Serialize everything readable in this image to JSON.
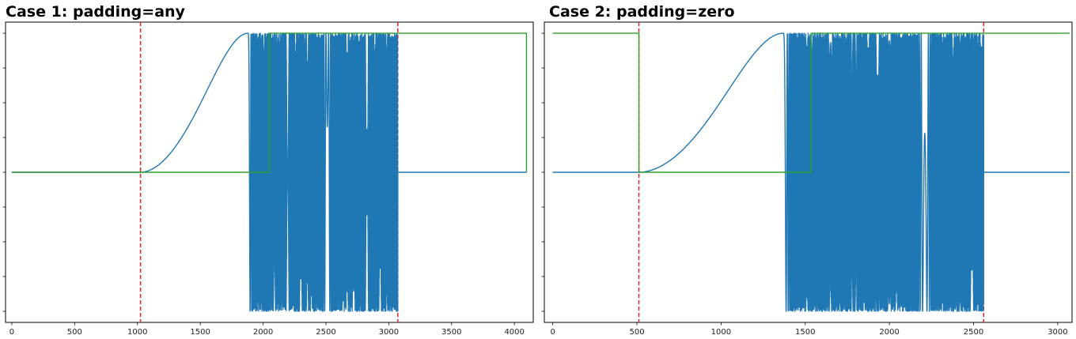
{
  "chart_data": [
    {
      "type": "line",
      "title": "Case 1: padding=any",
      "xlabel": "",
      "ylabel": "",
      "xlim": [
        -50,
        4150
      ],
      "ylim": [
        -1.08,
        1.08
      ],
      "x_ticks": [
        0,
        500,
        1000,
        1500,
        2000,
        2500,
        3000,
        3500,
        4000
      ],
      "y_tick_count": 9,
      "grid": false,
      "colors": {
        "signal": "#1f77b4",
        "window": "#2ca02c",
        "marker": "#d62728"
      },
      "series": [
        {
          "kind": "chirp-signal",
          "color": "#1f77b4",
          "x_start": 0,
          "x_end": 4096,
          "signal_start": 1024,
          "peak_x": 1880,
          "trough_x": 2195,
          "signal_end": 3072,
          "baseline": 0,
          "amplitude": 1
        },
        {
          "kind": "window",
          "color": "#2ca02c",
          "points": [
            [
              0,
              0
            ],
            [
              2048,
              0
            ],
            [
              2048,
              1
            ],
            [
              4096,
              1
            ],
            [
              4096,
              0
            ]
          ]
        }
      ],
      "vlines": [
        {
          "x": 1024,
          "color": "#d62728",
          "style": "dashed"
        },
        {
          "x": 3072,
          "color": "#d62728",
          "style": "dashed"
        }
      ]
    },
    {
      "type": "line",
      "title": "Case 2: padding=zero",
      "xlabel": "",
      "ylabel": "",
      "xlim": [
        -50,
        3085
      ],
      "ylim": [
        -1.08,
        1.08
      ],
      "x_ticks": [
        0,
        500,
        1000,
        1500,
        2000,
        2500,
        3000
      ],
      "y_tick_count": 9,
      "grid": false,
      "colors": {
        "signal": "#1f77b4",
        "window": "#2ca02c",
        "marker": "#d62728"
      },
      "series": [
        {
          "kind": "chirp-signal",
          "color": "#1f77b4",
          "x_start": 0,
          "x_end": 3072,
          "signal_start": 512,
          "peak_x": 1370,
          "trough_x": 1685,
          "signal_end": 2560,
          "baseline": 0,
          "amplitude": 1
        },
        {
          "kind": "window",
          "color": "#2ca02c",
          "points": [
            [
              0,
              1
            ],
            [
              512,
              1
            ],
            [
              512,
              0
            ],
            [
              1536,
              0
            ],
            [
              1536,
              1
            ],
            [
              3072,
              1
            ]
          ]
        }
      ],
      "vlines": [
        {
          "x": 512,
          "color": "#d62728",
          "style": "dashed"
        },
        {
          "x": 2560,
          "color": "#d62728",
          "style": "dashed"
        }
      ]
    }
  ]
}
